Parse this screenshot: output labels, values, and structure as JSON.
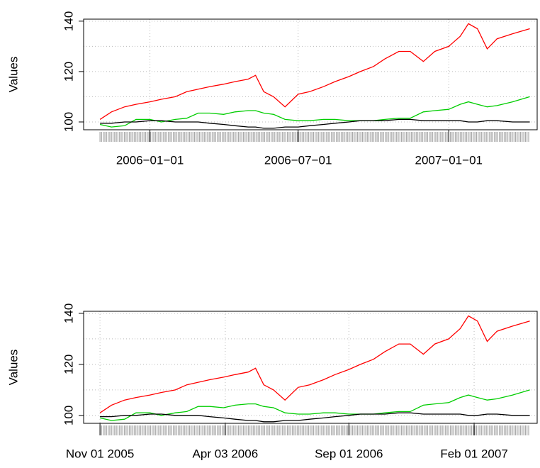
{
  "chart_data": [
    {
      "type": "line",
      "ylabel": "Values",
      "x": [
        "2005-11-01",
        "2005-11-15",
        "2005-12-01",
        "2005-12-15",
        "2006-01-01",
        "2006-01-15",
        "2006-02-01",
        "2006-02-15",
        "2006-03-01",
        "2006-03-15",
        "2006-04-01",
        "2006-04-15",
        "2006-05-01",
        "2006-05-10",
        "2006-05-20",
        "2006-06-01",
        "2006-06-15",
        "2006-07-01",
        "2006-07-15",
        "2006-08-01",
        "2006-08-15",
        "2006-09-01",
        "2006-09-15",
        "2006-10-01",
        "2006-10-15",
        "2006-11-01",
        "2006-11-15",
        "2006-12-01",
        "2006-12-15",
        "2007-01-01",
        "2007-01-15",
        "2007-01-25",
        "2007-02-05",
        "2007-02-17",
        "2007-03-01",
        "2007-03-20",
        "2007-04-10"
      ],
      "series": [
        {
          "color": "#ff0000",
          "values": [
            101,
            104,
            106,
            107,
            108,
            109,
            110,
            112,
            113,
            114,
            115,
            116,
            117,
            118.5,
            112,
            110,
            106,
            111,
            112,
            114,
            116,
            118,
            120,
            122,
            125,
            128,
            128,
            124,
            128,
            130,
            134,
            139,
            137,
            129,
            133,
            135,
            137
          ]
        },
        {
          "color": "#00cd00",
          "values": [
            99,
            98,
            98.5,
            101,
            101,
            100,
            101,
            101.5,
            103.5,
            103.5,
            103,
            104,
            104.5,
            104.5,
            103.5,
            103,
            101,
            100.5,
            100.5,
            101,
            101,
            100.5,
            100.5,
            100.5,
            101,
            101.5,
            101.5,
            104,
            104.5,
            105,
            107,
            108,
            107,
            106,
            106.5,
            108,
            110
          ]
        },
        {
          "color": "#000000",
          "values": [
            99.5,
            99.5,
            100,
            100,
            100.5,
            100.5,
            100,
            100,
            100,
            99.5,
            99,
            98.5,
            98,
            98,
            97.5,
            97.5,
            98,
            98,
            98.5,
            99,
            99.5,
            100,
            100.5,
            100.5,
            100.5,
            101,
            101,
            100.5,
            100.5,
            100.5,
            100.5,
            100,
            100,
            100.5,
            100.5,
            100,
            100
          ]
        }
      ],
      "xlim": [
        "2005-10-12",
        "2007-04-19"
      ],
      "xticks": [
        {
          "value": "2006-01-01",
          "label": "2006−01−01"
        },
        {
          "value": "2006-07-01",
          "label": "2006−07−01"
        },
        {
          "value": "2007-01-01",
          "label": "2007−01−01"
        }
      ],
      "ylim": [
        96.9,
        140.8
      ],
      "yticks": [
        100,
        120,
        140
      ],
      "ygrid": [
        100,
        110,
        120,
        130,
        140
      ],
      "grid": true
    },
    {
      "type": "line",
      "ylabel": "Values",
      "x": [
        "2005-11-01",
        "2005-11-15",
        "2005-12-01",
        "2005-12-15",
        "2006-01-01",
        "2006-01-15",
        "2006-02-01",
        "2006-02-15",
        "2006-03-01",
        "2006-03-15",
        "2006-04-01",
        "2006-04-15",
        "2006-05-01",
        "2006-05-10",
        "2006-05-20",
        "2006-06-01",
        "2006-06-15",
        "2006-07-01",
        "2006-07-15",
        "2006-08-01",
        "2006-08-15",
        "2006-09-01",
        "2006-09-15",
        "2006-10-01",
        "2006-10-15",
        "2006-11-01",
        "2006-11-15",
        "2006-12-01",
        "2006-12-15",
        "2007-01-01",
        "2007-01-15",
        "2007-01-25",
        "2007-02-05",
        "2007-02-17",
        "2007-03-01",
        "2007-03-20",
        "2007-04-10"
      ],
      "series": [
        {
          "color": "#ff0000",
          "values": [
            101,
            104,
            106,
            107,
            108,
            109,
            110,
            112,
            113,
            114,
            115,
            116,
            117,
            118.5,
            112,
            110,
            106,
            111,
            112,
            114,
            116,
            118,
            120,
            122,
            125,
            128,
            128,
            124,
            128,
            130,
            134,
            139,
            137,
            129,
            133,
            135,
            137
          ]
        },
        {
          "color": "#00cd00",
          "values": [
            99,
            98,
            98.5,
            101,
            101,
            100,
            101,
            101.5,
            103.5,
            103.5,
            103,
            104,
            104.5,
            104.5,
            103.5,
            103,
            101,
            100.5,
            100.5,
            101,
            101,
            100.5,
            100.5,
            100.5,
            101,
            101.5,
            101.5,
            104,
            104.5,
            105,
            107,
            108,
            107,
            106,
            106.5,
            108,
            110
          ]
        },
        {
          "color": "#000000",
          "values": [
            99.5,
            99.5,
            100,
            100,
            100.5,
            100.5,
            100,
            100,
            100,
            99.5,
            99,
            98.5,
            98,
            98,
            97.5,
            97.5,
            98,
            98,
            98.5,
            99,
            99.5,
            100,
            100.5,
            100.5,
            100.5,
            101,
            101,
            100.5,
            100.5,
            100.5,
            100.5,
            100,
            100,
            100.5,
            100.5,
            100,
            100
          ]
        }
      ],
      "xlim": [
        "2005-10-12",
        "2007-04-19"
      ],
      "xticks": [
        {
          "value": "2005-11-01",
          "label": "Nov 01 2005"
        },
        {
          "value": "2006-04-03",
          "label": "Apr 03 2006"
        },
        {
          "value": "2006-09-01",
          "label": "Sep 01 2006"
        },
        {
          "value": "2007-02-01",
          "label": "Feb 01 2007"
        }
      ],
      "ylim": [
        96.9,
        140.8
      ],
      "yticks": [
        100,
        120,
        140
      ],
      "ygrid": [
        100,
        110,
        120,
        130,
        140
      ],
      "grid": true
    }
  ]
}
